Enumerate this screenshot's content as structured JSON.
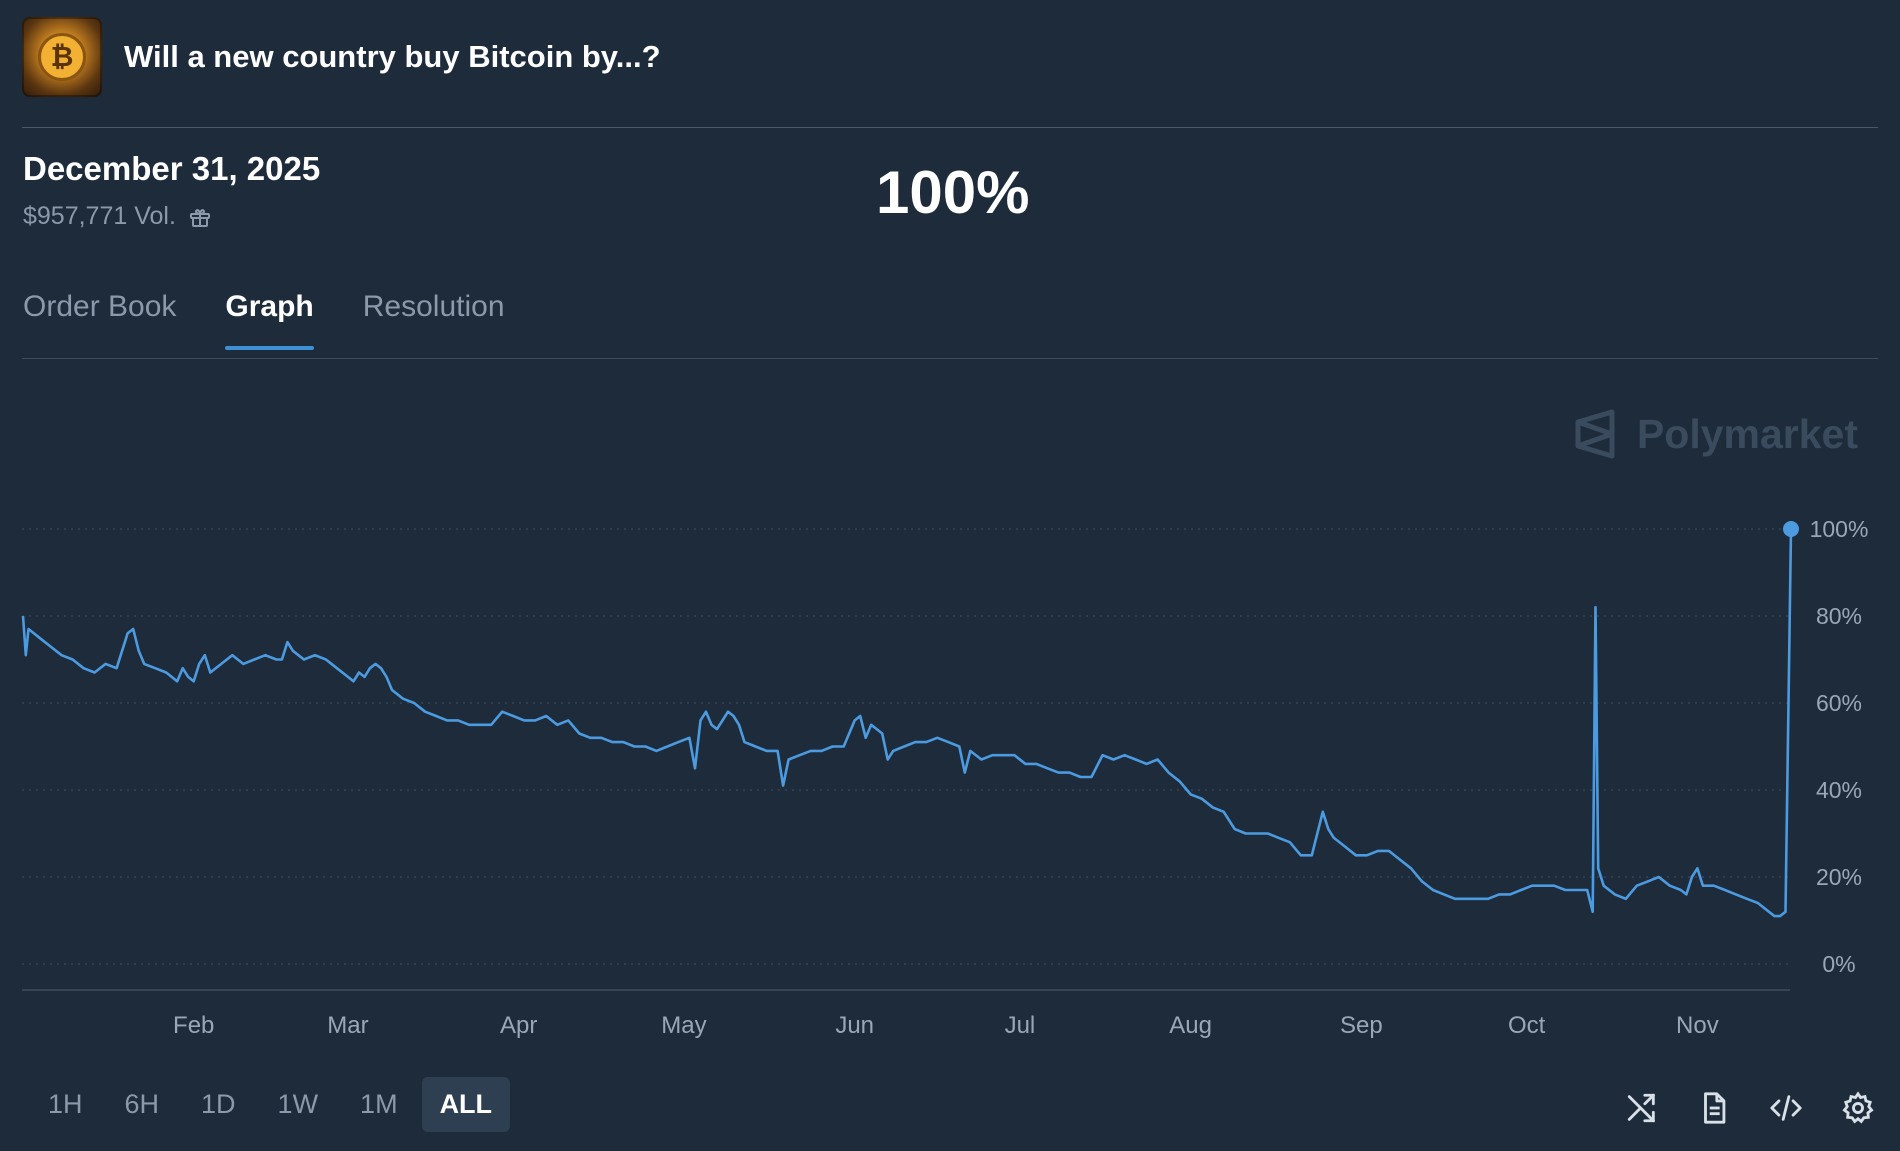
{
  "header": {
    "title": "Will a new country buy Bitcoin by...?",
    "logo_symbol": "₿"
  },
  "market": {
    "date_label": "December 31, 2025",
    "volume": "$957,771 Vol.",
    "probability": "100%"
  },
  "tabs": [
    {
      "label": "Order Book",
      "active": false
    },
    {
      "label": "Graph",
      "active": true
    },
    {
      "label": "Resolution",
      "active": false
    }
  ],
  "watermark": {
    "label": "Polymarket"
  },
  "chart_data": {
    "type": "line",
    "x_labels": [
      "Feb",
      "Mar",
      "Apr",
      "May",
      "Jun",
      "Jul",
      "Aug",
      "Sep",
      "Oct",
      "Nov"
    ],
    "y_ticks": [
      "0%",
      "20%",
      "40%",
      "60%",
      "80%",
      "100%"
    ],
    "ylim": [
      0,
      100
    ],
    "xlim": [
      0,
      321
    ],
    "x_label_days": [
      31,
      59,
      90,
      120,
      151,
      181,
      212,
      243,
      273,
      304
    ],
    "color": "#4c9be0",
    "series": [
      {
        "points": [
          [
            0,
            80
          ],
          [
            0.5,
            71
          ],
          [
            1,
            77
          ],
          [
            3,
            75
          ],
          [
            5,
            73
          ],
          [
            7,
            71
          ],
          [
            9,
            70
          ],
          [
            11,
            68
          ],
          [
            13,
            67
          ],
          [
            15,
            69
          ],
          [
            17,
            68
          ],
          [
            19,
            76
          ],
          [
            20,
            77
          ],
          [
            21,
            72
          ],
          [
            22,
            69
          ],
          [
            24,
            68
          ],
          [
            26,
            67
          ],
          [
            28,
            65
          ],
          [
            29,
            68
          ],
          [
            30,
            66
          ],
          [
            31,
            65
          ],
          [
            32,
            69
          ],
          [
            33,
            71
          ],
          [
            34,
            67
          ],
          [
            36,
            69
          ],
          [
            38,
            71
          ],
          [
            40,
            69
          ],
          [
            42,
            70
          ],
          [
            44,
            71
          ],
          [
            46,
            70
          ],
          [
            47,
            70
          ],
          [
            48,
            74
          ],
          [
            49,
            72
          ],
          [
            51,
            70
          ],
          [
            53,
            71
          ],
          [
            55,
            70
          ],
          [
            57,
            68
          ],
          [
            59,
            66
          ],
          [
            60,
            65
          ],
          [
            61,
            67
          ],
          [
            62,
            66
          ],
          [
            63,
            68
          ],
          [
            64,
            69
          ],
          [
            65,
            68
          ],
          [
            66,
            66
          ],
          [
            67,
            63
          ],
          [
            69,
            61
          ],
          [
            71,
            60
          ],
          [
            73,
            58
          ],
          [
            75,
            57
          ],
          [
            77,
            56
          ],
          [
            79,
            56
          ],
          [
            81,
            55
          ],
          [
            83,
            55
          ],
          [
            85,
            55
          ],
          [
            87,
            58
          ],
          [
            89,
            57
          ],
          [
            91,
            56
          ],
          [
            93,
            56
          ],
          [
            95,
            57
          ],
          [
            97,
            55
          ],
          [
            99,
            56
          ],
          [
            101,
            53
          ],
          [
            103,
            52
          ],
          [
            105,
            52
          ],
          [
            107,
            51
          ],
          [
            109,
            51
          ],
          [
            111,
            50
          ],
          [
            113,
            50
          ],
          [
            115,
            49
          ],
          [
            117,
            50
          ],
          [
            119,
            51
          ],
          [
            121,
            52
          ],
          [
            122,
            45
          ],
          [
            123,
            56
          ],
          [
            124,
            58
          ],
          [
            125,
            55
          ],
          [
            126,
            54
          ],
          [
            127,
            56
          ],
          [
            128,
            58
          ],
          [
            129,
            57
          ],
          [
            130,
            55
          ],
          [
            131,
            51
          ],
          [
            133,
            50
          ],
          [
            135,
            49
          ],
          [
            137,
            49
          ],
          [
            138,
            41
          ],
          [
            139,
            47
          ],
          [
            141,
            48
          ],
          [
            143,
            49
          ],
          [
            145,
            49
          ],
          [
            147,
            50
          ],
          [
            149,
            50
          ],
          [
            151,
            56
          ],
          [
            152,
            57
          ],
          [
            153,
            52
          ],
          [
            154,
            55
          ],
          [
            155,
            54
          ],
          [
            156,
            53
          ],
          [
            157,
            47
          ],
          [
            158,
            49
          ],
          [
            160,
            50
          ],
          [
            162,
            51
          ],
          [
            164,
            51
          ],
          [
            166,
            52
          ],
          [
            168,
            51
          ],
          [
            170,
            50
          ],
          [
            171,
            44
          ],
          [
            172,
            49
          ],
          [
            174,
            47
          ],
          [
            176,
            48
          ],
          [
            178,
            48
          ],
          [
            180,
            48
          ],
          [
            182,
            46
          ],
          [
            184,
            46
          ],
          [
            186,
            45
          ],
          [
            188,
            44
          ],
          [
            190,
            44
          ],
          [
            192,
            43
          ],
          [
            194,
            43
          ],
          [
            196,
            48
          ],
          [
            198,
            47
          ],
          [
            200,
            48
          ],
          [
            202,
            47
          ],
          [
            204,
            46
          ],
          [
            206,
            47
          ],
          [
            208,
            44
          ],
          [
            210,
            42
          ],
          [
            212,
            39
          ],
          [
            214,
            38
          ],
          [
            216,
            36
          ],
          [
            218,
            35
          ],
          [
            220,
            31
          ],
          [
            222,
            30
          ],
          [
            224,
            30
          ],
          [
            226,
            30
          ],
          [
            228,
            29
          ],
          [
            230,
            28
          ],
          [
            232,
            25
          ],
          [
            234,
            25
          ],
          [
            236,
            35
          ],
          [
            237,
            31
          ],
          [
            238,
            29
          ],
          [
            240,
            27
          ],
          [
            242,
            25
          ],
          [
            244,
            25
          ],
          [
            246,
            26
          ],
          [
            248,
            26
          ],
          [
            250,
            24
          ],
          [
            252,
            22
          ],
          [
            254,
            19
          ],
          [
            256,
            17
          ],
          [
            258,
            16
          ],
          [
            260,
            15
          ],
          [
            262,
            15
          ],
          [
            264,
            15
          ],
          [
            266,
            15
          ],
          [
            268,
            16
          ],
          [
            270,
            16
          ],
          [
            272,
            17
          ],
          [
            274,
            18
          ],
          [
            276,
            18
          ],
          [
            278,
            18
          ],
          [
            280,
            17
          ],
          [
            282,
            17
          ],
          [
            284,
            17
          ],
          [
            285,
            12
          ],
          [
            285.5,
            82
          ],
          [
            286,
            22
          ],
          [
            287,
            18
          ],
          [
            289,
            16
          ],
          [
            291,
            15
          ],
          [
            293,
            18
          ],
          [
            295,
            19
          ],
          [
            297,
            20
          ],
          [
            299,
            18
          ],
          [
            301,
            17
          ],
          [
            302,
            16
          ],
          [
            303,
            20
          ],
          [
            304,
            22
          ],
          [
            305,
            18
          ],
          [
            307,
            18
          ],
          [
            309,
            17
          ],
          [
            311,
            16
          ],
          [
            313,
            15
          ],
          [
            315,
            14
          ],
          [
            317,
            12
          ],
          [
            318,
            11
          ],
          [
            319,
            11
          ],
          [
            320,
            12
          ],
          [
            321,
            100
          ]
        ]
      }
    ]
  },
  "time_buttons": [
    {
      "label": "1H",
      "active": false
    },
    {
      "label": "6H",
      "active": false
    },
    {
      "label": "1D",
      "active": false
    },
    {
      "label": "1W",
      "active": false
    },
    {
      "label": "1M",
      "active": false
    },
    {
      "label": "ALL",
      "active": true
    }
  ],
  "tools": [
    "shuffle-icon",
    "document-icon",
    "code-icon",
    "settings-icon"
  ]
}
